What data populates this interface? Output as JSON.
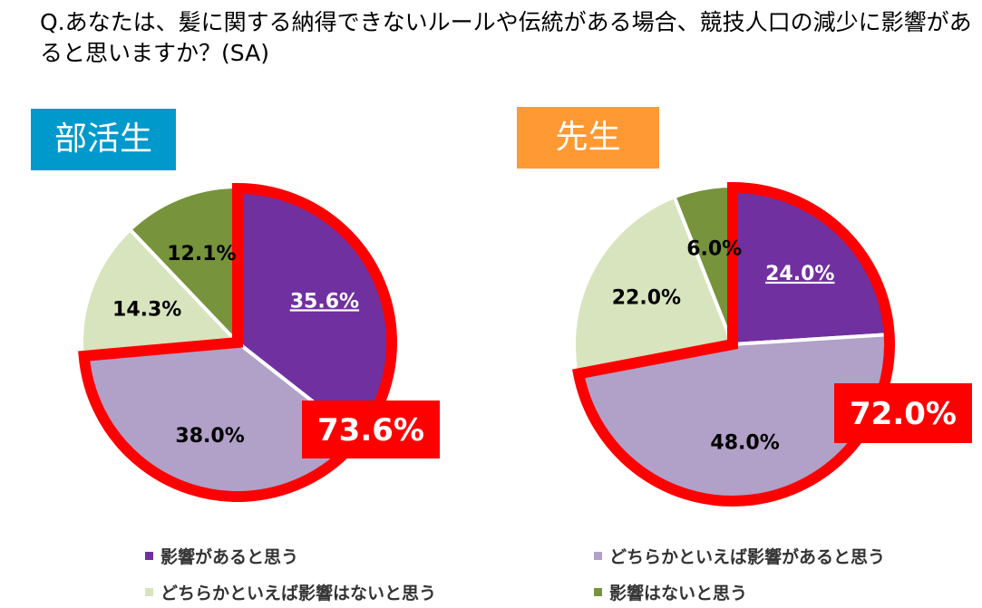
{
  "question": "Q.あなたは、髪に関する納得できないルールや伝統がある場合、競技人口の減少に影響があると思いますか？(SA)",
  "colors": {
    "group_students_bg": "#0099cc",
    "group_teachers_bg": "#ff9933",
    "highlight_red": "#ff0000",
    "very_affect": "#7030a0",
    "somewhat_affect": "#b1a0c7",
    "somewhat_not": "#d7e4bd",
    "not_affect": "#77933c"
  },
  "chart_data": [
    {
      "type": "pie",
      "title": "部活生",
      "categories": [
        "影響があると思う",
        "どちらかといえば影響があると思う",
        "どちらかといえば影響はないと思う",
        "影響はないと思う"
      ],
      "values": [
        35.6,
        38.0,
        14.3,
        12.1
      ],
      "labels": [
        "35.6%",
        "38.0%",
        "14.3%",
        "12.1%"
      ],
      "highlight_total": "73.6%",
      "highlighted_slices": [
        0,
        1
      ]
    },
    {
      "type": "pie",
      "title": "先生",
      "categories": [
        "影響があると思う",
        "どちらかといえば影響があると思う",
        "どちらかといえば影響はないと思う",
        "影響はないと思う"
      ],
      "values": [
        24.0,
        48.0,
        22.0,
        6.0
      ],
      "labels": [
        "24.0%",
        "48.0%",
        "22.0%",
        "6.0%"
      ],
      "highlight_total": "72.0%",
      "highlighted_slices": [
        0,
        1
      ]
    }
  ],
  "legend": [
    {
      "label": "影響があると思う",
      "color": "#7030a0"
    },
    {
      "label": "どちらかといえば影響があると思う",
      "color": "#b1a0c7"
    },
    {
      "label": "どちらかといえば影響はないと思う",
      "color": "#d7e4bd"
    },
    {
      "label": "影響はないと思う",
      "color": "#77933c"
    }
  ]
}
